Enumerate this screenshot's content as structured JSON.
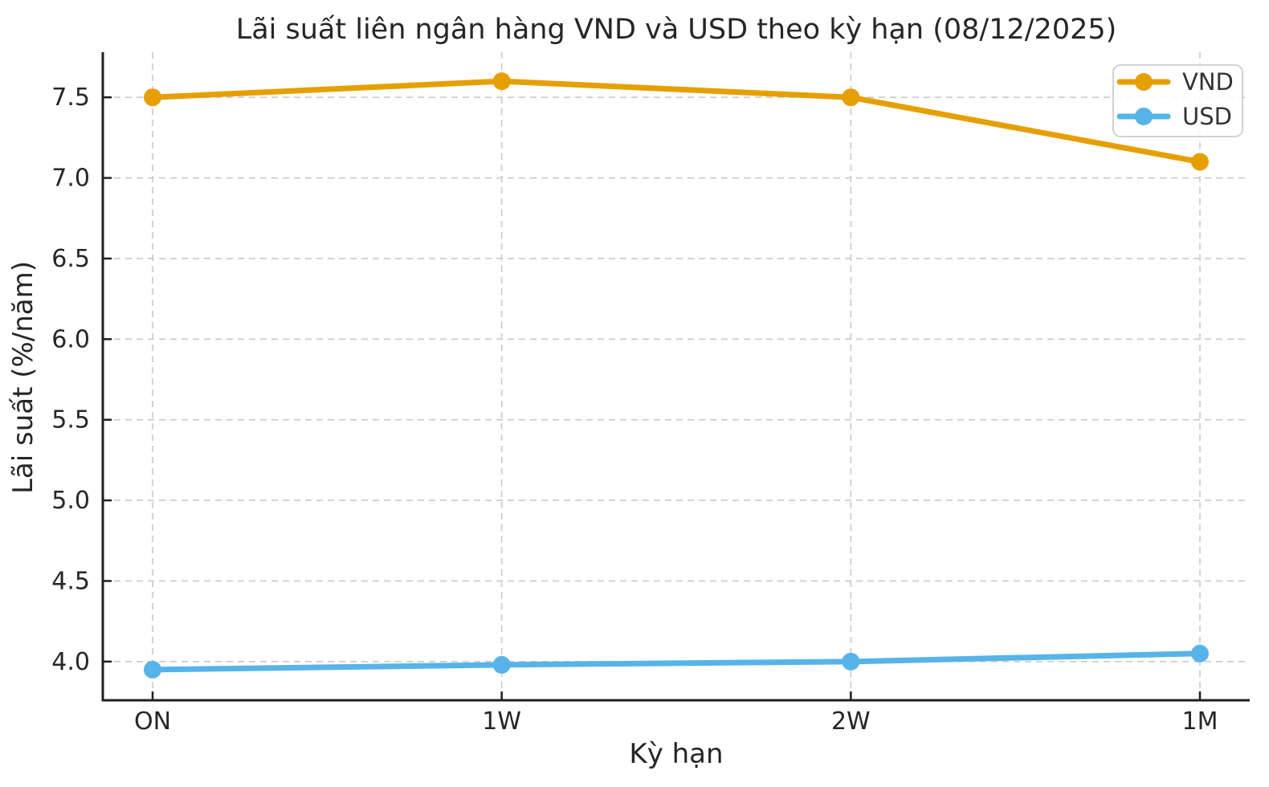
{
  "chart_data": {
    "type": "line",
    "title": "Lãi suất liên ngân hàng VND và USD theo kỳ hạn (08/12/2025)",
    "xlabel": "Kỳ hạn",
    "ylabel": "Lãi suất (%/năm)",
    "categories": [
      "ON",
      "1W",
      "2W",
      "1M"
    ],
    "series": [
      {
        "name": "VND",
        "values": [
          7.5,
          7.6,
          7.5,
          7.1
        ],
        "color": "#E69F00"
      },
      {
        "name": "USD",
        "values": [
          3.95,
          3.98,
          4.0,
          4.05
        ],
        "color": "#56B4E9"
      }
    ],
    "ylim": [
      3.76,
      7.78
    ],
    "yticks": [
      4.0,
      4.5,
      5.0,
      5.5,
      6.0,
      6.5,
      7.0,
      7.5
    ],
    "ytick_decimals": 1,
    "grid": true,
    "grid_style": "dashed",
    "legend_position": "upper right"
  },
  "style": {
    "background": "#ffffff",
    "grid_color": "#c9c9c9",
    "spine_color": "#1f1f1f",
    "tick_color": "#1f1f1f",
    "text_color": "#262626",
    "legend_border_color": "#cccccc",
    "legend_background": "#ffffff"
  }
}
